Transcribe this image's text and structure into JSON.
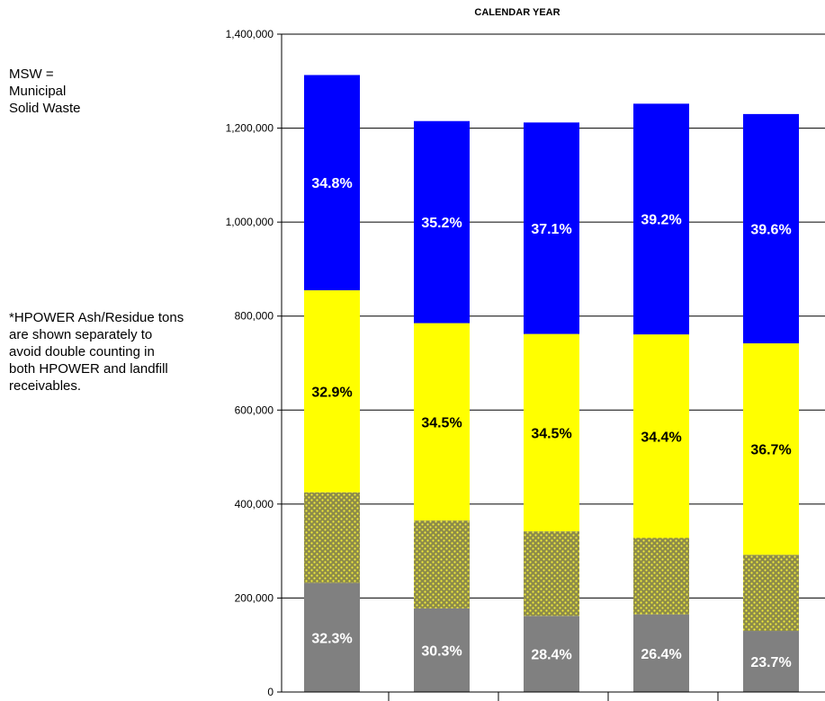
{
  "notes": {
    "msw": "MSW = Municipal Solid Waste",
    "hpower": "*HPOWER Ash/Residue tons are shown separately to avoid double counting in both HPOWER and landfill receivables."
  },
  "colors": {
    "bottom": "#808080",
    "ash": "#8c8a4a",
    "ash_dots": "#f2ee3a",
    "middle": "#ffff00",
    "top": "#0000ff",
    "label_light": "#ffffff",
    "label_dark": "#000000"
  },
  "chart_data": {
    "type": "bar",
    "stacked": true,
    "title": "CALENDAR YEAR",
    "ylim": [
      0,
      1400000
    ],
    "y_ticks": [
      0,
      200000,
      400000,
      600000,
      800000,
      1000000,
      1200000,
      1400000
    ],
    "y_tick_labels": [
      "0",
      "200,000",
      "400,000",
      "600,000",
      "800,000",
      "1,000,000",
      "1,200,000",
      "1,400,000"
    ],
    "grid": true,
    "series": [
      {
        "key": "bottom",
        "values": [
          232000,
          178000,
          162000,
          165000,
          130000
        ],
        "labels": [
          "32.3%",
          "30.3%",
          "28.4%",
          "26.4%",
          "23.7%"
        ]
      },
      {
        "key": "ash",
        "values": [
          193000,
          187000,
          180000,
          163000,
          162000
        ],
        "labels": []
      },
      {
        "key": "middle",
        "values": [
          430000,
          420000,
          420000,
          433000,
          450000
        ],
        "labels": [
          "32.9%",
          "34.5%",
          "34.5%",
          "34.4%",
          "36.7%"
        ]
      },
      {
        "key": "top",
        "values": [
          458000,
          430000,
          450000,
          491000,
          488000
        ],
        "labels": [
          "34.8%",
          "35.2%",
          "37.1%",
          "39.2%",
          "39.6%"
        ]
      }
    ]
  }
}
